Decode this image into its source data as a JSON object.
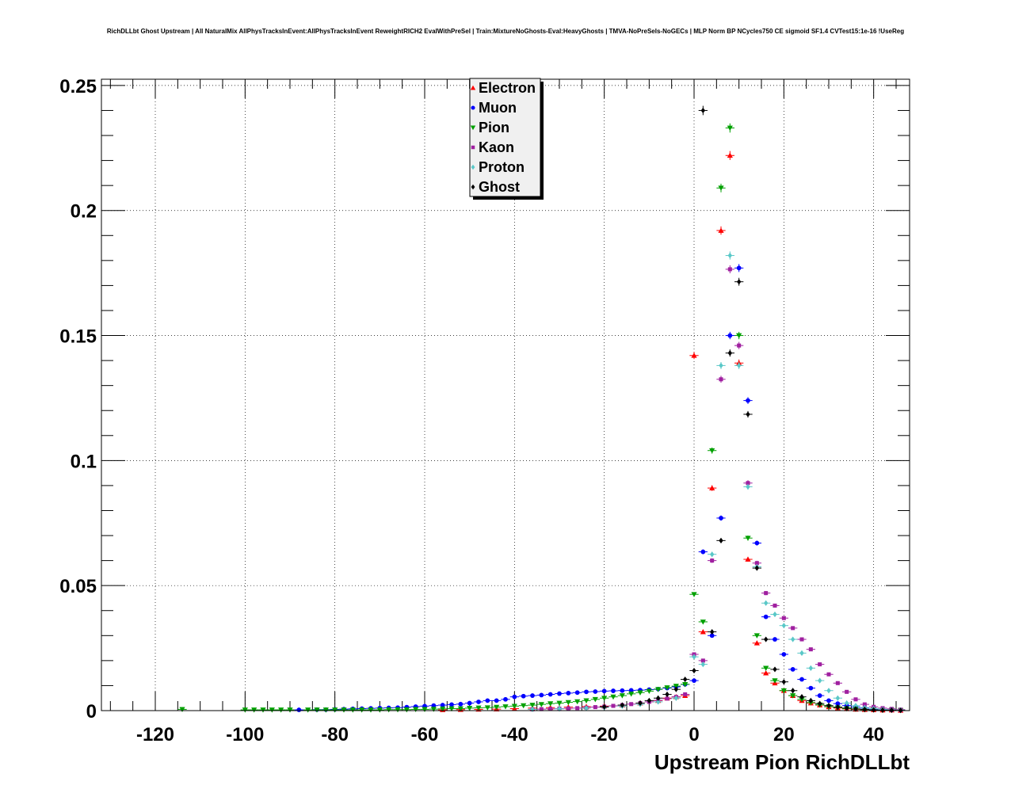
{
  "chart_data": {
    "type": "scatter",
    "title": "RichDLLbt Ghost Upstream | All NaturalMix AllPhysTracksInEvent:AllPhysTracksInEvent ReweightRICH2 EvalWithPreSel | Train:MixtureNoGhosts-Eval:HeavyGhosts | TMVA-NoPreSels-NoGECs | MLP Norm BP NCycles750 CE sigmoid SF1.4 CVTest15:1e-16 !UseReg",
    "xlabel": "Upstream Pion RichDLLbt",
    "ylabel": "",
    "xlim": [
      -132,
      48
    ],
    "ylim": [
      0,
      0.2525
    ],
    "grid": true,
    "legend_position": "top-center",
    "x_ticks": [
      -120,
      -100,
      -80,
      -60,
      -40,
      -20,
      0,
      20,
      40
    ],
    "x_tick_labels": [
      "-120",
      "-100",
      "-80",
      "-60",
      "-40",
      "-20",
      "0",
      "20",
      "40"
    ],
    "y_ticks": [
      0,
      0.05,
      0.1,
      0.15,
      0.2,
      0.25
    ],
    "y_tick_labels": [
      "0",
      "0.05",
      "0.1",
      "0.15",
      "0.2",
      "0.25"
    ],
    "series": [
      {
        "name": "Electron",
        "color": "#ff0000",
        "marker": "triangle-up",
        "x": [
          -56,
          -52,
          -48,
          -44,
          -40,
          -36,
          -32,
          -28,
          -24,
          -20,
          -16,
          -12,
          -8,
          -6,
          -4,
          -2,
          0,
          2,
          4,
          6,
          8,
          10,
          12,
          14,
          16,
          18,
          20,
          22,
          24,
          26,
          28,
          30,
          32,
          34,
          36,
          38,
          40,
          42,
          44,
          46
        ],
        "y": [
          0.0003,
          0.0004,
          0.0005,
          0.0006,
          0.0008,
          0.001,
          0.0012,
          0.0014,
          0.0016,
          0.0018,
          0.0022,
          0.003,
          0.004,
          0.005,
          0.0055,
          0.006,
          0.142,
          0.0315,
          0.089,
          0.192,
          0.222,
          0.139,
          0.0605,
          0.027,
          0.015,
          0.011,
          0.008,
          0.006,
          0.004,
          0.003,
          0.0022,
          0.0015,
          0.001,
          0.0007,
          0.0005,
          0.0004,
          0.0003,
          0.0002,
          0.0002,
          0.0001
        ]
      },
      {
        "name": "Muon",
        "color": "#0000ff",
        "marker": "circle",
        "x": [
          -88,
          -84,
          -82,
          -80,
          -78,
          -76,
          -74,
          -72,
          -70,
          -68,
          -66,
          -64,
          -62,
          -60,
          -58,
          -56,
          -54,
          -52,
          -50,
          -48,
          -46,
          -44,
          -42,
          -40,
          -38,
          -36,
          -34,
          -32,
          -30,
          -28,
          -26,
          -24,
          -22,
          -20,
          -18,
          -16,
          -14,
          -12,
          -10,
          -8,
          -6,
          -4,
          -2,
          0,
          2,
          4,
          6,
          8,
          10,
          12,
          14,
          16,
          18,
          20,
          22,
          24,
          26,
          28,
          30,
          32,
          34,
          36,
          38,
          40,
          42,
          44,
          46
        ],
        "y": [
          0.0003,
          0.0004,
          0.0004,
          0.0005,
          0.0006,
          0.0007,
          0.0008,
          0.0009,
          0.001,
          0.0011,
          0.0012,
          0.0014,
          0.0016,
          0.0018,
          0.002,
          0.0022,
          0.0024,
          0.0026,
          0.003,
          0.0035,
          0.004,
          0.004,
          0.0045,
          0.0055,
          0.0058,
          0.006,
          0.0062,
          0.0065,
          0.0068,
          0.007,
          0.0072,
          0.0075,
          0.0076,
          0.0078,
          0.0079,
          0.008,
          0.0081,
          0.0082,
          0.0084,
          0.0086,
          0.009,
          0.0095,
          0.0105,
          0.012,
          0.0635,
          0.03,
          0.077,
          0.15,
          0.177,
          0.124,
          0.067,
          0.0375,
          0.0285,
          0.0225,
          0.0165,
          0.0125,
          0.009,
          0.006,
          0.004,
          0.0028,
          0.002,
          0.0014,
          0.001,
          0.0007,
          0.0005,
          0.0003,
          0.0002
        ]
      },
      {
        "name": "Pion",
        "color": "#00a000",
        "marker": "triangle-down",
        "x": [
          -114,
          -100,
          -98,
          -96,
          -94,
          -92,
          -90,
          -86,
          -84,
          -82,
          -80,
          -78,
          -76,
          -74,
          -72,
          -70,
          -68,
          -66,
          -64,
          -62,
          -60,
          -58,
          -56,
          -54,
          -52,
          -50,
          -48,
          -46,
          -44,
          -42,
          -40,
          -38,
          -36,
          -34,
          -32,
          -30,
          -28,
          -26,
          -24,
          -22,
          -20,
          -18,
          -16,
          -14,
          -12,
          -10,
          -8,
          -6,
          -4,
          -2,
          0,
          2,
          4,
          6,
          8,
          10,
          12,
          14,
          16,
          18,
          20,
          22,
          24,
          26,
          28,
          30,
          32,
          34,
          36,
          38,
          40,
          42,
          44,
          46
        ],
        "y": [
          0.0005,
          0.0003,
          0.0003,
          0.0003,
          0.0003,
          0.0003,
          0.0003,
          0.0003,
          0.0003,
          0.0003,
          0.0003,
          0.0003,
          0.0003,
          0.0003,
          0.0003,
          0.0003,
          0.0004,
          0.0004,
          0.0004,
          0.0005,
          0.0005,
          0.0006,
          0.0007,
          0.0008,
          0.0008,
          0.001,
          0.0011,
          0.0012,
          0.0014,
          0.0016,
          0.0018,
          0.002,
          0.0022,
          0.0025,
          0.0028,
          0.003,
          0.0033,
          0.0036,
          0.004,
          0.0045,
          0.005,
          0.0055,
          0.006,
          0.0067,
          0.0072,
          0.0078,
          0.0085,
          0.0092,
          0.0098,
          0.0105,
          0.0465,
          0.0355,
          0.104,
          0.209,
          0.233,
          0.15,
          0.069,
          0.03,
          0.017,
          0.012,
          0.008,
          0.006,
          0.0045,
          0.0032,
          0.0023,
          0.0016,
          0.0012,
          0.0008,
          0.0006,
          0.0004,
          0.0003,
          0.0002,
          0.0002,
          0.0001
        ]
      },
      {
        "name": "Kaon",
        "color": "#a020a0",
        "marker": "square",
        "x": [
          -36,
          -34,
          -32,
          -30,
          -28,
          -26,
          -24,
          -22,
          -20,
          -18,
          -16,
          -14,
          -12,
          -10,
          -8,
          -6,
          -4,
          -2,
          0,
          2,
          4,
          6,
          8,
          10,
          12,
          14,
          16,
          18,
          20,
          22,
          24,
          26,
          28,
          30,
          32,
          34,
          36,
          38,
          40,
          42,
          44,
          46
        ],
        "y": [
          0.0005,
          0.0006,
          0.0007,
          0.0008,
          0.0009,
          0.001,
          0.0012,
          0.0014,
          0.0016,
          0.0019,
          0.0022,
          0.0026,
          0.003,
          0.0035,
          0.0041,
          0.0048,
          0.0055,
          0.0065,
          0.0225,
          0.02,
          0.06,
          0.1325,
          0.1765,
          0.146,
          0.091,
          0.059,
          0.047,
          0.042,
          0.037,
          0.033,
          0.0285,
          0.0245,
          0.0185,
          0.0145,
          0.011,
          0.0075,
          0.0045,
          0.0025,
          0.0015,
          0.001,
          0.0007,
          0.0004
        ]
      },
      {
        "name": "Proton",
        "color": "#5ac8c8",
        "marker": "diamond",
        "x": [
          -36,
          -30,
          -24,
          -20,
          -16,
          -12,
          -8,
          -4,
          0,
          2,
          4,
          6,
          8,
          10,
          12,
          14,
          16,
          18,
          20,
          22,
          24,
          26,
          28,
          30,
          32,
          34,
          36,
          38,
          40,
          42,
          44,
          46
        ],
        "y": [
          0.0005,
          0.0007,
          0.001,
          0.0013,
          0.0018,
          0.0025,
          0.0035,
          0.005,
          0.0215,
          0.0185,
          0.0625,
          0.138,
          0.182,
          0.138,
          0.0895,
          0.0575,
          0.043,
          0.0385,
          0.034,
          0.0285,
          0.023,
          0.017,
          0.012,
          0.008,
          0.005,
          0.003,
          0.002,
          0.0012,
          0.0008,
          0.0005,
          0.0003,
          0.0002
        ]
      },
      {
        "name": "Ghost",
        "color": "#000000",
        "marker": "diamond",
        "x": [
          -20,
          -16,
          -12,
          -10,
          -8,
          -6,
          -4,
          -2,
          0,
          2,
          4,
          6,
          8,
          10,
          12,
          14,
          16,
          18,
          20,
          22,
          24,
          26,
          28,
          30,
          32,
          34,
          36,
          38,
          40,
          42,
          44,
          46
        ],
        "y": [
          0.0015,
          0.0022,
          0.003,
          0.004,
          0.005,
          0.0065,
          0.0085,
          0.0125,
          0.016,
          0.24,
          0.0315,
          0.068,
          0.143,
          0.1715,
          0.1185,
          0.057,
          0.0285,
          0.0165,
          0.0115,
          0.008,
          0.0055,
          0.004,
          0.0028,
          0.002,
          0.0014,
          0.001,
          0.0007,
          0.0005,
          0.0003,
          0.0002,
          0.0002,
          0.0001
        ]
      }
    ]
  }
}
